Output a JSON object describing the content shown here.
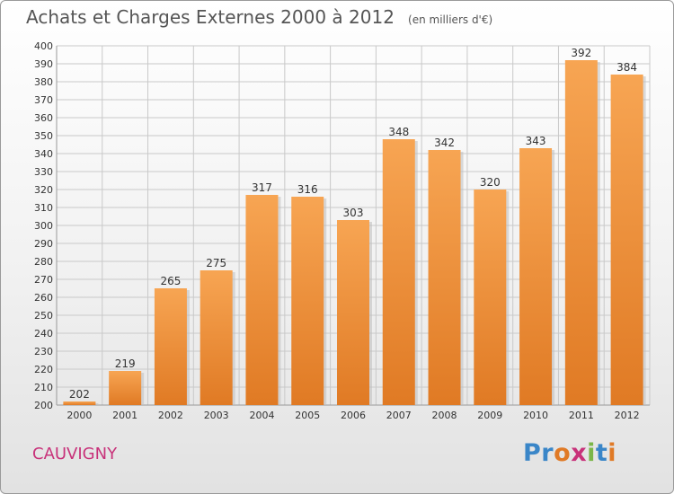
{
  "title": "Achats et Charges Externes 2000 à 2012",
  "subtitle": "(en milliers d'€)",
  "commune": "CAUVIGNY",
  "logo": {
    "text": "Proxiti",
    "letters": [
      {
        "ch": "P",
        "color": "#3a86c8"
      },
      {
        "ch": "r",
        "color": "#3a86c8"
      },
      {
        "ch": "o",
        "color": "#e07a26"
      },
      {
        "ch": "x",
        "color": "#c8327a"
      },
      {
        "ch": "i",
        "color": "#7ab648"
      },
      {
        "ch": "t",
        "color": "#3a86c8"
      },
      {
        "ch": "i",
        "color": "#e07a26"
      }
    ]
  },
  "colors": {
    "bar_light": "#f7a553",
    "bar_dark": "#e07a24",
    "grid": "#c9c9c9",
    "title": "#555555",
    "commune": "#c8327a"
  },
  "chart_data": {
    "type": "bar",
    "categories": [
      "2000",
      "2001",
      "2002",
      "2003",
      "2004",
      "2005",
      "2006",
      "2007",
      "2008",
      "2009",
      "2010",
      "2011",
      "2012"
    ],
    "values": [
      202,
      219,
      265,
      275,
      317,
      316,
      303,
      348,
      342,
      320,
      343,
      392,
      384
    ],
    "ylim": [
      200,
      400
    ],
    "ytick_step": 10,
    "yticks": [
      "200",
      "210",
      "220",
      "230",
      "240",
      "250",
      "260",
      "270",
      "280",
      "290",
      "300",
      "310",
      "320",
      "330",
      "340",
      "350",
      "360",
      "370",
      "380",
      "390",
      "400"
    ],
    "grid": true,
    "data_labels": true
  }
}
